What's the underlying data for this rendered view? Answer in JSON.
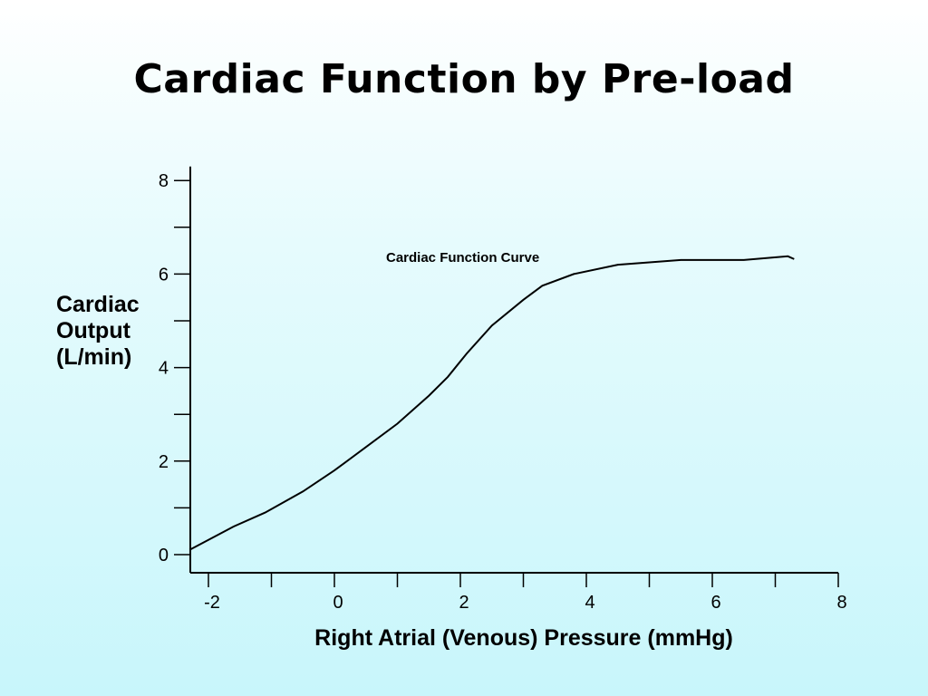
{
  "slide": {
    "title": "Cardiac Function by Pre-load"
  },
  "chart_data": {
    "type": "line",
    "title": "Cardiac Function by Pre-load",
    "xlabel": "Right Atrial (Venous) Pressure (mmHg)",
    "ylabel_lines": [
      "Cardiac",
      "Output",
      "(L/min)"
    ],
    "xlim": [
      -2.3,
      8
    ],
    "ylim": [
      0,
      8.3
    ],
    "x_ticks_major": [
      -2,
      0,
      2,
      4,
      6,
      8
    ],
    "x_tick_labels": [
      "-2",
      "0",
      "2",
      "4",
      "6",
      "8"
    ],
    "y_ticks_major": [
      0,
      2,
      4,
      6,
      8
    ],
    "y_tick_labels": [
      "0",
      "2",
      "4",
      "6",
      "8"
    ],
    "grid": false,
    "series": [
      {
        "name": "Cardiac Function Curve",
        "x": [
          -2.3,
          -1.6,
          -1.1,
          -0.5,
          0,
          0.5,
          1,
          1.5,
          1.8,
          2.1,
          2.5,
          3,
          3.3,
          3.8,
          4.5,
          5.5,
          6.5,
          7.2,
          7.3
        ],
        "y": [
          0.1,
          0.6,
          0.9,
          1.35,
          1.8,
          2.3,
          2.8,
          3.4,
          3.8,
          4.3,
          4.9,
          5.45,
          5.75,
          6.0,
          6.2,
          6.3,
          6.3,
          6.38,
          6.32
        ]
      }
    ],
    "annotations": [
      {
        "text": "Cardiac Function Curve"
      }
    ]
  }
}
